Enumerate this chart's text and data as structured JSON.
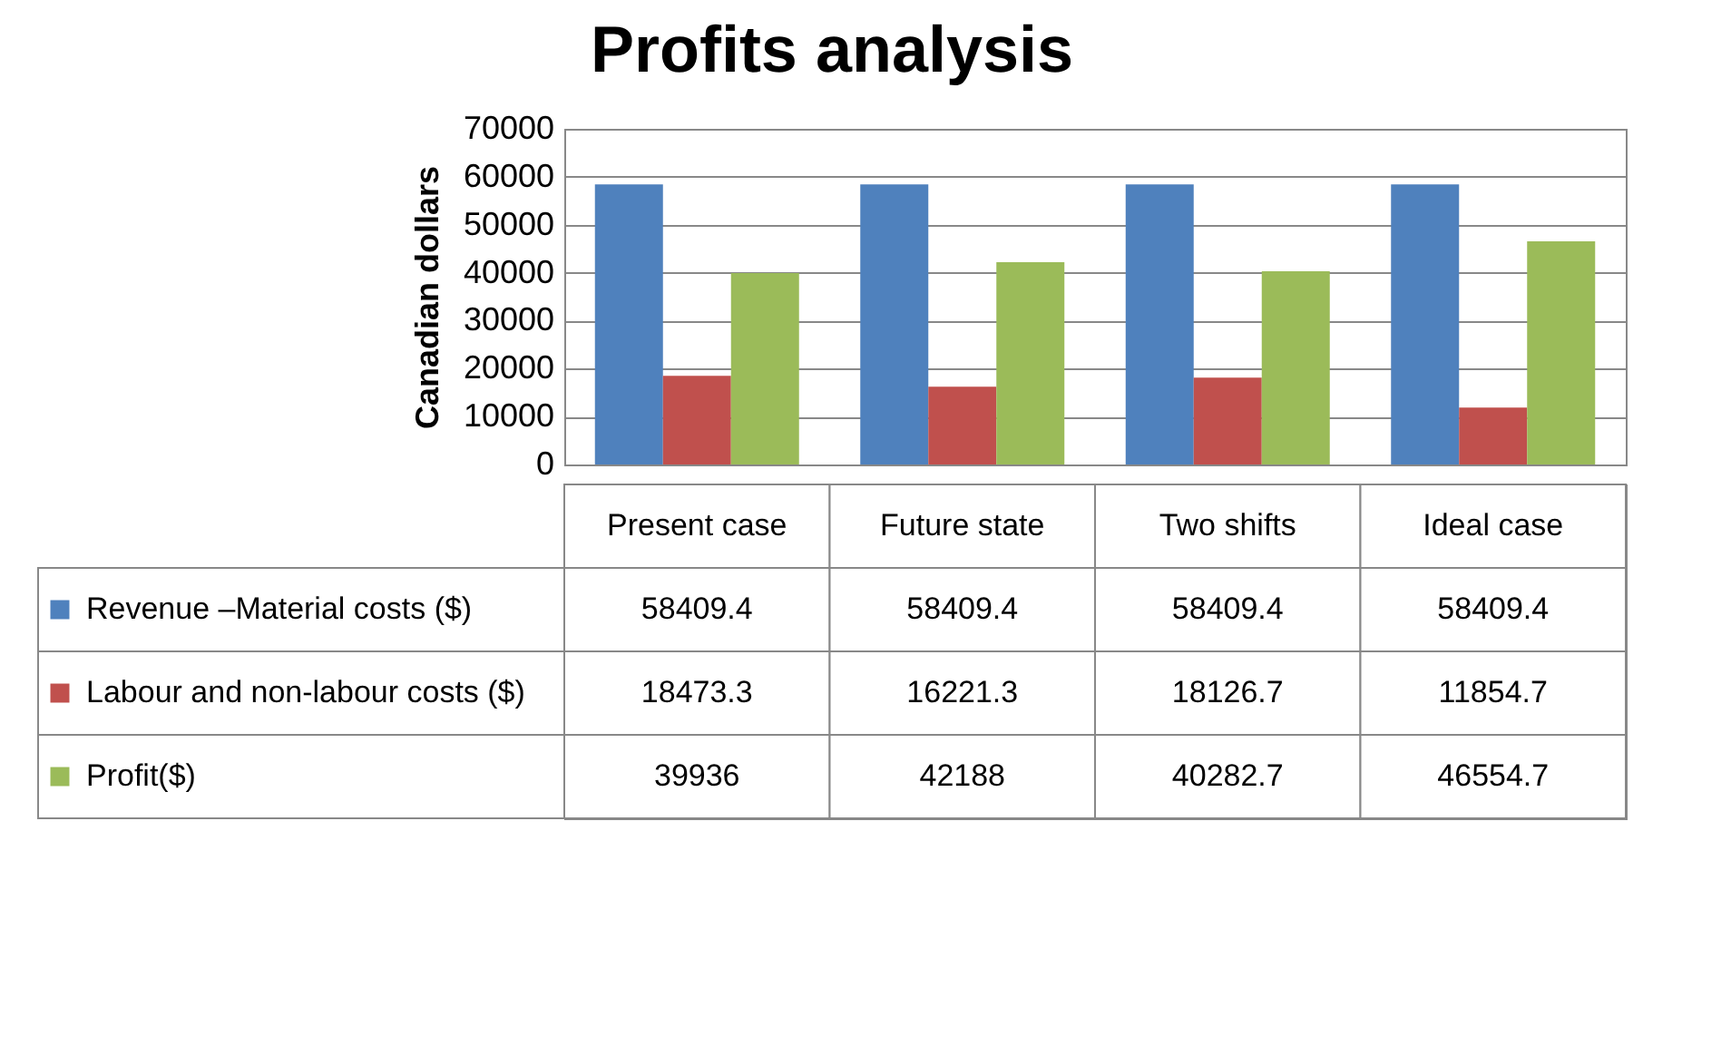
{
  "chart_data": {
    "type": "bar",
    "title": "Profits analysis",
    "ylabel": "Canadian dollars",
    "categories": [
      "Present case",
      "Future state",
      "Two shifts",
      "Ideal case"
    ],
    "series": [
      {
        "name": "Revenue –Material costs ($)",
        "color": "#4f81bd",
        "values": [
          58409.4,
          58409.4,
          58409.4,
          58409.4
        ]
      },
      {
        "name": "Labour and non-labour costs ($)",
        "color": "#c0504d",
        "values": [
          18473.3,
          16221.3,
          18126.7,
          11854.7
        ]
      },
      {
        "name": "Profit($)",
        "color": "#9bbb59",
        "values": [
          39936,
          42188,
          40282.7,
          46554.7
        ]
      }
    ],
    "ylim": [
      0,
      70000
    ],
    "yticks": [
      0,
      10000,
      20000,
      30000,
      40000,
      50000,
      60000,
      70000
    ],
    "grid": "y",
    "legend": "bottom",
    "data_labels": true
  }
}
